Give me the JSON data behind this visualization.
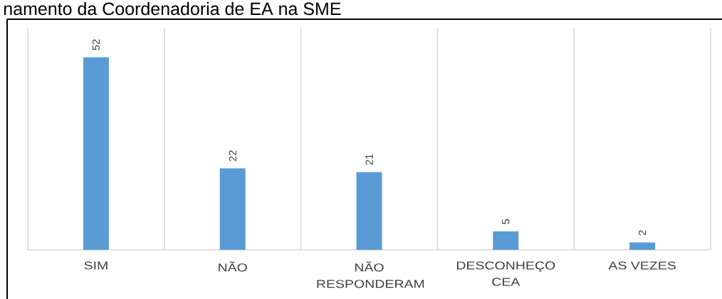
{
  "chart_data": {
    "type": "bar",
    "title": "namento da Coordenadoria de EA na SME",
    "categories": [
      "SIM",
      "NÃO",
      "NÃO RESPONDERAM",
      "DESCONHEÇO CEA",
      "AS VEZES"
    ],
    "values": [
      52,
      22,
      21,
      5,
      2
    ],
    "color": "#5b9bd5",
    "ylim": [
      0,
      60
    ],
    "data_labels": true,
    "grid": "x",
    "tick_labels": "x"
  }
}
